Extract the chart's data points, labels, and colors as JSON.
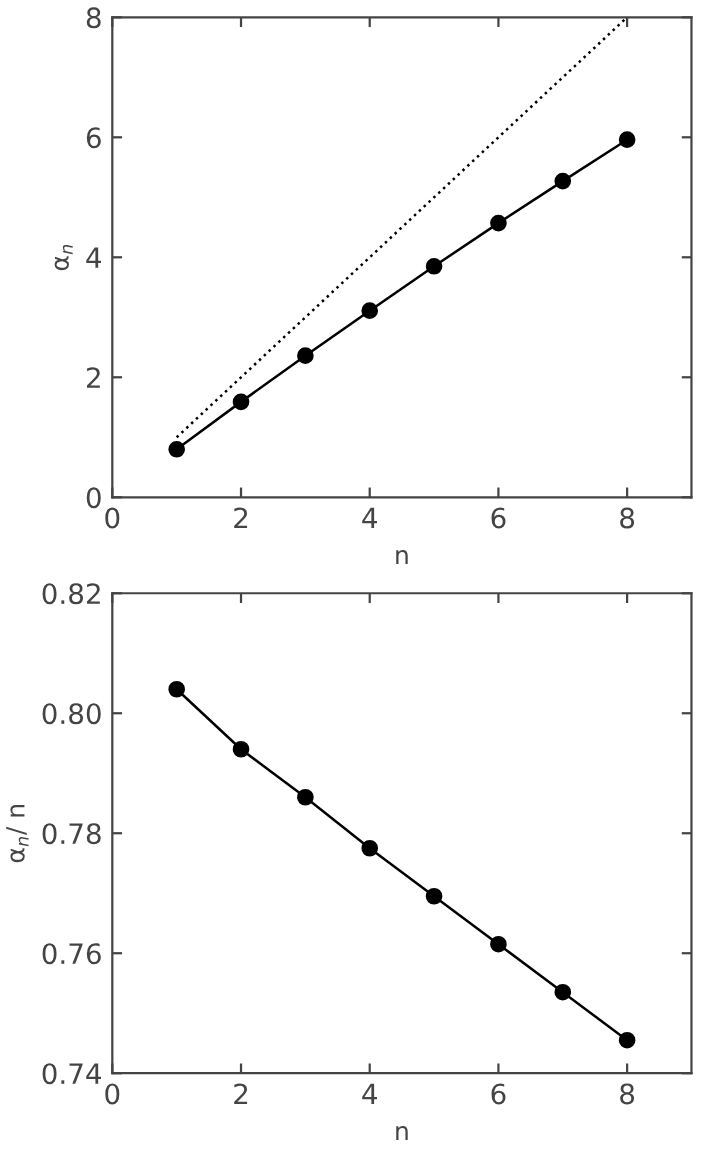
{
  "chart_data": [
    {
      "type": "line",
      "xlabel": "n",
      "ylabel": "α$_{n}$",
      "xlim": [
        0,
        9
      ],
      "ylim": [
        0,
        8
      ],
      "xticks": [
        0,
        2,
        4,
        6,
        8
      ],
      "yticks": [
        0,
        2,
        4,
        6,
        8
      ],
      "grid": false,
      "legend": false,
      "series": [
        {
          "x": [
            1,
            2,
            3,
            4,
            5,
            6,
            7,
            8
          ],
          "values": [
            0.8,
            1.59,
            2.36,
            3.11,
            3.85,
            4.57,
            5.27,
            5.96
          ],
          "color": "#000000",
          "marker": "circle",
          "line_style": "solid"
        },
        {
          "x": [
            1,
            8
          ],
          "values": [
            1,
            8
          ],
          "color": "#000000",
          "marker": "none",
          "line_style": "dotted"
        }
      ]
    },
    {
      "type": "line",
      "xlabel": "n",
      "ylabel": "α$_{n}$/ n",
      "xlim": [
        0,
        9
      ],
      "ylim": [
        0.74,
        0.82
      ],
      "xticks": [
        0,
        2,
        4,
        6,
        8
      ],
      "yticks": [
        0.74,
        0.76,
        0.78,
        {
          "value": 0.8,
          "label": "0.80"
        },
        0.82
      ],
      "grid": false,
      "legend": false,
      "series": [
        {
          "x": [
            1,
            2,
            3,
            4,
            5,
            6,
            7,
            8
          ],
          "values": [
            0.804,
            0.794,
            0.786,
            0.7775,
            0.7695,
            0.7615,
            0.7535,
            0.7455
          ],
          "color": "#000000",
          "marker": "circle",
          "line_style": "solid"
        }
      ]
    }
  ]
}
